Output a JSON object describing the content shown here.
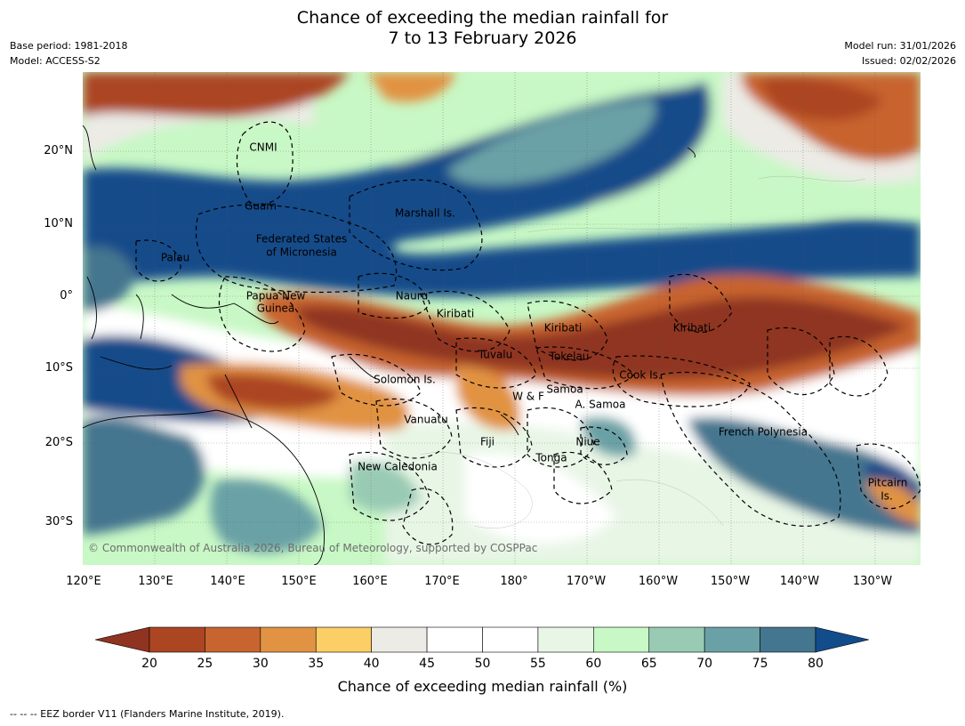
{
  "title": {
    "line1": "Chance of exceeding the median rainfall for",
    "line2": "7 to 13 February 2026"
  },
  "meta": {
    "base_period": "Base period: 1981-2018",
    "model": "Model: ACCESS-S2",
    "model_run": "Model run: 31/01/2026",
    "issued": "Issued: 02/02/2026"
  },
  "map": {
    "lat_ticks": [
      "20°N",
      "10°N",
      "0°",
      "10°S",
      "20°S",
      "30°S"
    ],
    "lon_ticks": [
      "120°E",
      "130°E",
      "140°E",
      "150°E",
      "160°E",
      "170°E",
      "180°",
      "170°W",
      "160°W",
      "150°W",
      "140°W",
      "130°W"
    ],
    "places": {
      "cnmi": "CNMI",
      "guam": "Guam",
      "marshall": "Marshall Is.",
      "fsm_1": "Federated States",
      "fsm_2": "of Micronesia",
      "palau": "Palau",
      "png_1": "Papua New",
      "png_2": "Guinea",
      "nauru": "Nauru",
      "kiribati_w": "Kiribati",
      "kiribati_c": "Kiribati",
      "kiribati_e": "Kiribati",
      "tuvalu": "Tuvalu",
      "tokelau": "Tokelau",
      "cook": "Cook Is.",
      "solomon": "Solomon Is.",
      "wf": "W & F",
      "samoa": "Samoa",
      "asamoa": "A. Samoa",
      "vanuatu": "Vanuatu",
      "fiji": "Fiji",
      "niue": "Niue",
      "tonga": "Tonga",
      "frpoly": "French Polynesia",
      "newcal": "New Caledonia",
      "pitcairn_1": "Pitcairn",
      "pitcairn_2": "Is."
    },
    "copyright": "© Commonwealth of Australia 2026, Bureau of Meteorology, supported by COSPPac"
  },
  "colorbar": {
    "ticks": [
      "20",
      "25",
      "30",
      "35",
      "40",
      "45",
      "50",
      "55",
      "60",
      "65",
      "70",
      "75",
      "80"
    ],
    "label": "Chance of exceeding median rainfall (%)",
    "under_color": "#8f3420",
    "over_color": "#124c8a",
    "colors": [
      "#ac4522",
      "#c8642f",
      "#e19343",
      "#fcce66",
      "#ecebe6",
      "#ffffff",
      "#ffffff",
      "#e8f6e6",
      "#c8f8c5",
      "#99cbb4",
      "#6aa1a6",
      "#44768f"
    ]
  },
  "eez_note": "--  --  -- EEZ border V11 (Flanders Marine Institute, 2019)."
}
